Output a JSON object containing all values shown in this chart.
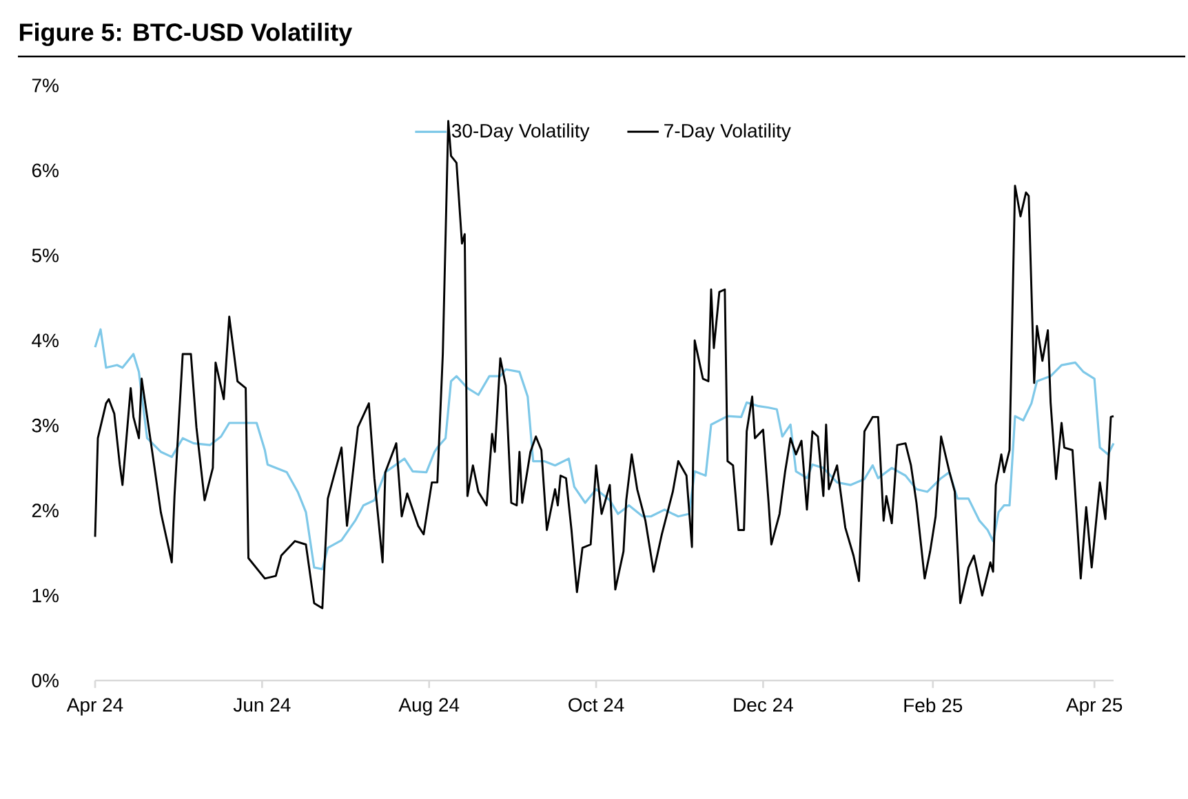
{
  "chart_data": {
    "type": "line",
    "title": "Figure 5: BTC-USD Volatility",
    "xlim": [
      "2024-04-01",
      "2025-04-08"
    ],
    "xticks": [
      {
        "value": "2024-04-01",
        "label": "Apr 24"
      },
      {
        "value": "2024-06-01",
        "label": "Jun 24"
      },
      {
        "value": "2024-08-01",
        "label": "Aug 24"
      },
      {
        "value": "2024-10-01",
        "label": "Oct 24"
      },
      {
        "value": "2024-12-01",
        "label": "Dec 24"
      },
      {
        "value": "2025-02-01",
        "label": "Feb 25"
      },
      {
        "value": "2025-04-01",
        "label": "Apr 25"
      }
    ],
    "ylim": [
      0,
      7
    ],
    "yticks": [
      {
        "value": 0,
        "label": "0%"
      },
      {
        "value": 1,
        "label": "1%"
      },
      {
        "value": 2,
        "label": "2%"
      },
      {
        "value": 3,
        "label": "3%"
      },
      {
        "value": 4,
        "label": "4%"
      },
      {
        "value": 5,
        "label": "5%"
      },
      {
        "value": 6,
        "label": "6%"
      },
      {
        "value": 7,
        "label": "7%"
      }
    ],
    "legend": "top",
    "series": [
      {
        "name": "30-Day Volatility",
        "color": "#7ec8e8",
        "x": [
          "2024-04-01",
          "2024-04-03",
          "2024-04-05",
          "2024-04-09",
          "2024-04-11",
          "2024-04-15",
          "2024-04-17",
          "2024-04-20",
          "2024-04-25",
          "2024-04-29",
          "2024-05-03",
          "2024-05-07",
          "2024-05-13",
          "2024-05-17",
          "2024-05-20",
          "2024-05-25",
          "2024-05-30",
          "2024-06-02",
          "2024-06-03",
          "2024-06-10",
          "2024-06-14",
          "2024-06-17",
          "2024-06-20",
          "2024-06-23",
          "2024-06-25",
          "2024-06-30",
          "2024-07-05",
          "2024-07-08",
          "2024-07-12",
          "2024-07-16",
          "2024-07-23",
          "2024-07-26",
          "2024-07-31",
          "2024-08-03",
          "2024-08-04",
          "2024-08-07",
          "2024-08-09",
          "2024-08-11",
          "2024-08-15",
          "2024-08-19",
          "2024-08-23",
          "2024-08-27",
          "2024-08-29",
          "2024-09-03",
          "2024-09-06",
          "2024-09-08",
          "2024-09-12",
          "2024-09-16",
          "2024-09-21",
          "2024-09-23",
          "2024-09-27",
          "2024-10-01",
          "2024-10-06",
          "2024-10-09",
          "2024-10-13",
          "2024-10-18",
          "2024-10-21",
          "2024-10-26",
          "2024-10-29",
          "2024-10-31",
          "2024-11-04",
          "2024-11-06",
          "2024-11-10",
          "2024-11-12",
          "2024-11-18",
          "2024-11-23",
          "2024-11-25",
          "2024-11-29",
          "2024-12-03",
          "2024-12-06",
          "2024-12-08",
          "2024-12-11",
          "2024-12-13",
          "2024-12-17",
          "2024-12-19",
          "2024-12-23",
          "2024-12-28",
          "2025-01-02",
          "2025-01-07",
          "2025-01-10",
          "2025-01-12",
          "2025-01-17",
          "2025-01-22",
          "2025-01-26",
          "2025-01-30",
          "2025-02-04",
          "2025-02-07",
          "2025-02-10",
          "2025-02-14",
          "2025-02-18",
          "2025-02-21",
          "2025-02-23",
          "2025-02-25",
          "2025-02-27",
          "2025-03-01",
          "2025-03-03",
          "2025-03-06",
          "2025-03-09",
          "2025-03-11",
          "2025-03-16",
          "2025-03-20",
          "2025-03-25",
          "2025-03-28",
          "2025-04-01",
          "2025-04-03",
          "2025-04-06",
          "2025-04-08"
        ],
        "values": [
          3.92,
          4.13,
          3.68,
          3.71,
          3.68,
          3.84,
          3.63,
          2.85,
          2.69,
          2.63,
          2.85,
          2.79,
          2.77,
          2.87,
          3.03,
          3.03,
          3.03,
          2.71,
          2.54,
          2.45,
          2.22,
          1.98,
          1.33,
          1.31,
          1.56,
          1.65,
          1.88,
          2.06,
          2.12,
          2.45,
          2.61,
          2.46,
          2.45,
          2.69,
          2.74,
          2.85,
          3.52,
          3.58,
          3.44,
          3.36,
          3.58,
          3.58,
          3.66,
          3.63,
          3.34,
          2.58,
          2.58,
          2.53,
          2.61,
          2.28,
          2.09,
          2.25,
          2.12,
          1.96,
          2.06,
          1.93,
          1.93,
          2.01,
          1.96,
          1.93,
          1.96,
          2.46,
          2.41,
          3.01,
          3.11,
          3.1,
          3.27,
          3.23,
          3.21,
          3.19,
          2.87,
          3.01,
          2.46,
          2.38,
          2.54,
          2.5,
          2.33,
          2.3,
          2.37,
          2.53,
          2.38,
          2.5,
          2.41,
          2.25,
          2.22,
          2.38,
          2.45,
          2.14,
          2.14,
          1.88,
          1.77,
          1.64,
          1.98,
          2.06,
          2.06,
          3.11,
          3.06,
          3.26,
          3.52,
          3.58,
          3.71,
          3.74,
          3.63,
          3.55,
          2.74,
          2.66,
          2.79
        ]
      },
      {
        "name": "7-Day Volatility",
        "color": "#000000",
        "x": [
          "2024-04-01",
          "2024-04-02",
          "2024-04-05",
          "2024-04-06",
          "2024-04-08",
          "2024-04-10",
          "2024-04-11",
          "2024-04-14",
          "2024-04-15",
          "2024-04-17",
          "2024-04-18",
          "2024-04-22",
          "2024-04-25",
          "2024-04-29",
          "2024-04-30",
          "2024-05-03",
          "2024-05-06",
          "2024-05-08",
          "2024-05-11",
          "2024-05-14",
          "2024-05-15",
          "2024-05-18",
          "2024-05-20",
          "2024-05-23",
          "2024-05-26",
          "2024-05-27",
          "2024-06-02",
          "2024-06-06",
          "2024-06-08",
          "2024-06-13",
          "2024-06-17",
          "2024-06-20",
          "2024-06-23",
          "2024-06-25",
          "2024-06-30",
          "2024-07-02",
          "2024-07-05",
          "2024-07-06",
          "2024-07-10",
          "2024-07-12",
          "2024-07-15",
          "2024-07-16",
          "2024-07-20",
          "2024-07-22",
          "2024-07-24",
          "2024-07-28",
          "2024-07-30",
          "2024-08-02",
          "2024-08-04",
          "2024-08-06",
          "2024-08-08",
          "2024-08-09",
          "2024-08-11",
          "2024-08-13",
          "2024-08-14",
          "2024-08-15",
          "2024-08-17",
          "2024-08-19",
          "2024-08-22",
          "2024-08-24",
          "2024-08-25",
          "2024-08-27",
          "2024-08-29",
          "2024-08-31",
          "2024-09-02",
          "2024-09-03",
          "2024-09-04",
          "2024-09-07",
          "2024-09-09",
          "2024-09-11",
          "2024-09-13",
          "2024-09-16",
          "2024-09-17",
          "2024-09-18",
          "2024-09-20",
          "2024-09-22",
          "2024-09-24",
          "2024-09-26",
          "2024-09-29",
          "2024-10-01",
          "2024-10-03",
          "2024-10-06",
          "2024-10-08",
          "2024-10-11",
          "2024-10-12",
          "2024-10-14",
          "2024-10-16",
          "2024-10-19",
          "2024-10-22",
          "2024-10-25",
          "2024-10-29",
          "2024-10-31",
          "2024-11-03",
          "2024-11-05",
          "2024-11-06",
          "2024-11-09",
          "2024-11-11",
          "2024-11-12",
          "2024-11-13",
          "2024-11-15",
          "2024-11-17",
          "2024-11-18",
          "2024-11-20",
          "2024-11-22",
          "2024-11-24",
          "2024-11-25",
          "2024-11-27",
          "2024-11-28",
          "2024-12-01",
          "2024-12-03",
          "2024-12-04",
          "2024-12-07",
          "2024-12-09",
          "2024-12-11",
          "2024-12-13",
          "2024-12-15",
          "2024-12-17",
          "2024-12-19",
          "2024-12-21",
          "2024-12-23",
          "2024-12-24",
          "2024-12-25",
          "2024-12-28",
          "2024-12-31",
          "2025-01-03",
          "2025-01-05",
          "2025-01-07",
          "2025-01-10",
          "2025-01-12",
          "2025-01-14",
          "2025-01-15",
          "2025-01-17",
          "2025-01-19",
          "2025-01-22",
          "2025-01-24",
          "2025-01-26",
          "2025-01-29",
          "2025-01-31",
          "2025-02-02",
          "2025-02-04",
          "2025-02-07",
          "2025-02-09",
          "2025-02-11",
          "2025-02-14",
          "2025-02-16",
          "2025-02-19",
          "2025-02-22",
          "2025-02-23",
          "2025-02-24",
          "2025-02-26",
          "2025-02-27",
          "2025-03-01",
          "2025-03-03",
          "2025-03-05",
          "2025-03-07",
          "2025-03-08",
          "2025-03-10",
          "2025-03-11",
          "2025-03-13",
          "2025-03-15",
          "2025-03-16",
          "2025-03-18",
          "2025-03-20",
          "2025-03-21",
          "2025-03-24",
          "2025-03-27",
          "2025-03-29",
          "2025-03-31",
          "2025-04-03",
          "2025-04-05",
          "2025-04-07",
          "2025-04-08"
        ],
        "values": [
          1.69,
          2.85,
          3.26,
          3.31,
          3.14,
          2.54,
          2.3,
          3.44,
          3.1,
          2.85,
          3.55,
          2.66,
          1.98,
          1.39,
          2.17,
          3.84,
          3.84,
          2.98,
          2.12,
          2.5,
          3.74,
          3.31,
          4.28,
          3.52,
          3.44,
          1.44,
          1.2,
          1.23,
          1.47,
          1.64,
          1.6,
          0.91,
          0.85,
          2.14,
          2.74,
          1.82,
          2.69,
          2.98,
          3.26,
          2.38,
          1.39,
          2.45,
          2.79,
          1.93,
          2.2,
          1.82,
          1.72,
          2.33,
          2.33,
          3.84,
          6.58,
          6.17,
          6.09,
          5.14,
          5.25,
          2.17,
          2.53,
          2.22,
          2.06,
          2.9,
          2.69,
          3.79,
          3.47,
          2.09,
          2.06,
          2.69,
          2.09,
          2.69,
          2.87,
          2.71,
          1.77,
          2.25,
          2.06,
          2.41,
          2.38,
          1.77,
          1.04,
          1.56,
          1.6,
          2.53,
          1.96,
          2.3,
          1.07,
          1.52,
          2.12,
          2.66,
          2.25,
          1.88,
          1.28,
          1.72,
          2.22,
          2.58,
          2.41,
          1.57,
          4.0,
          3.55,
          3.52,
          4.6,
          3.91,
          4.57,
          4.6,
          2.58,
          2.53,
          1.77,
          1.77,
          2.93,
          3.34,
          2.85,
          2.95,
          2.09,
          1.6,
          1.96,
          2.45,
          2.85,
          2.66,
          2.82,
          2.01,
          2.93,
          2.87,
          2.17,
          3.01,
          2.25,
          2.53,
          1.8,
          1.47,
          1.17,
          2.93,
          3.1,
          3.1,
          1.88,
          2.17,
          1.85,
          2.77,
          2.79,
          2.53,
          2.09,
          1.2,
          1.52,
          1.93,
          2.87,
          2.46,
          2.22,
          0.91,
          1.33,
          1.47,
          1.0,
          1.39,
          1.28,
          2.3,
          2.66,
          2.45,
          2.71,
          5.82,
          5.46,
          5.74,
          5.7,
          3.5,
          4.17,
          3.76,
          4.12,
          3.27,
          2.37,
          3.03,
          2.74,
          2.71,
          1.2,
          2.04,
          1.33,
          2.33,
          1.9,
          3.1,
          3.11
        ]
      }
    ]
  }
}
